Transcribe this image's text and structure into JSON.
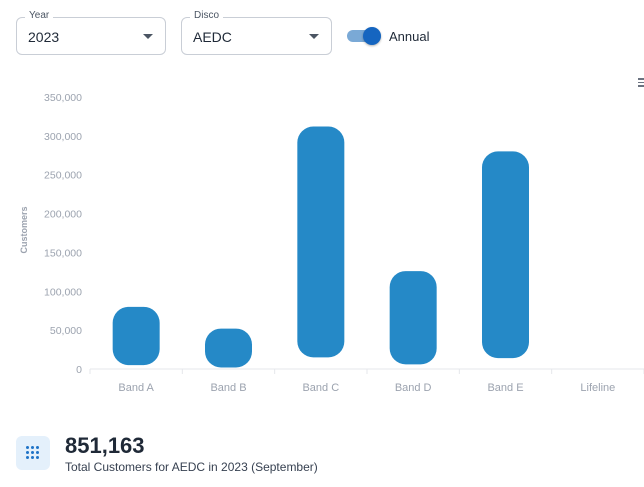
{
  "filters": {
    "year": {
      "label": "Year",
      "value": "2023"
    },
    "disco": {
      "label": "Disco",
      "value": "AEDC"
    },
    "annual_toggle": {
      "label": "Annual",
      "on": true
    }
  },
  "icons": {
    "menu": "hamburger-menu-icon",
    "summary": "grid-dots-icon"
  },
  "colors": {
    "bar": "#2589c7",
    "toggle": "#1565c0"
  },
  "chart_data": {
    "type": "bar",
    "subtype": "range",
    "ylabel": "Customers",
    "xlabel": "",
    "ylim": [
      0,
      350000
    ],
    "yticks": [
      0,
      50000,
      100000,
      150000,
      200000,
      250000,
      300000,
      350000
    ],
    "ytick_labels": [
      "0",
      "50,000",
      "100,000",
      "150,000",
      "200,000",
      "250,000",
      "300,000",
      "350,000"
    ],
    "categories": [
      "Band A",
      "Band B",
      "Band C",
      "Band D",
      "Band E",
      "Lifeline"
    ],
    "ranges": [
      [
        5000,
        80000
      ],
      [
        2000,
        52000
      ],
      [
        15000,
        312000
      ],
      [
        6000,
        126000
      ],
      [
        14000,
        280000
      ],
      null
    ],
    "legend": "none",
    "grid": false
  },
  "summary": {
    "total": "851,163",
    "caption": "Total Customers for AEDC in 2023 (September)"
  }
}
